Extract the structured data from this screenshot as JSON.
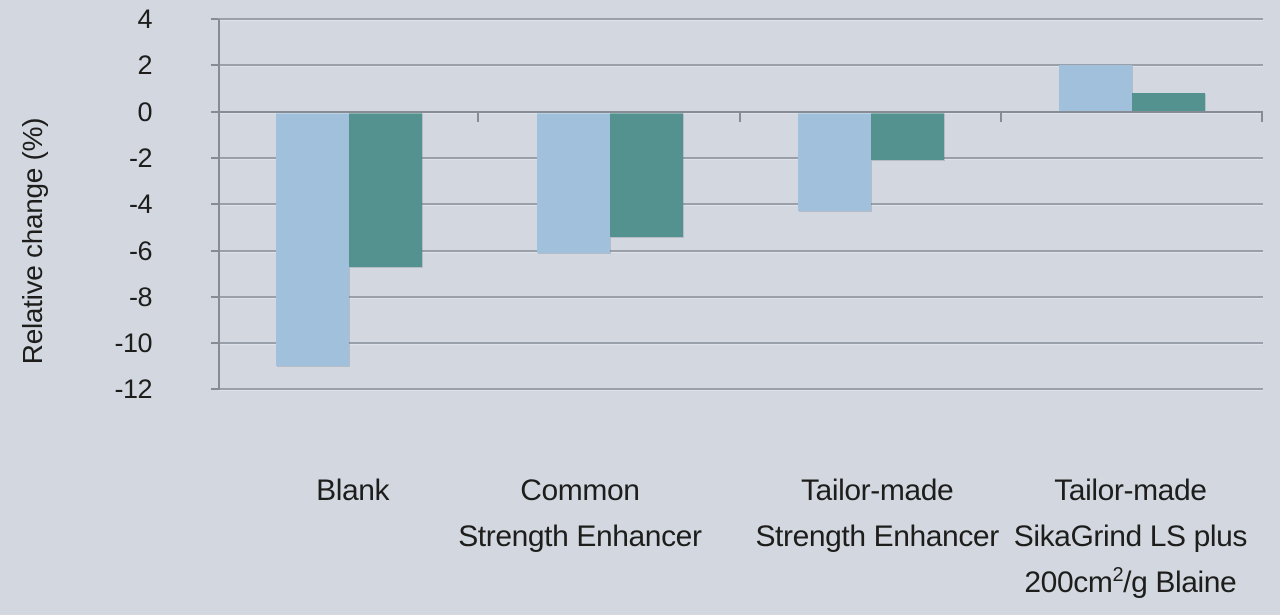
{
  "chart_data": {
    "type": "bar",
    "title": "",
    "xlabel": "",
    "ylabel": "Relative change (%)",
    "categories": [
      "Blank",
      "Common Strength Enhancer",
      "Tailor-made Strength Enhancer",
      "Tailor-made SikaGrind LS plus 200cm²/g Blaine"
    ],
    "category_label_lines": [
      [
        "Blank"
      ],
      [
        "Common",
        "Strength Enhancer"
      ],
      [
        "Tailor-made",
        "Strength Enhancer"
      ],
      [
        "Tailor-made",
        "SikaGrind LS plus",
        "200cm²/g Blaine"
      ]
    ],
    "series": [
      {
        "name": "light-blue-series",
        "color": "#a0c0dc",
        "values": [
          -11.0,
          -6.1,
          -4.3,
          2.0
        ]
      },
      {
        "name": "teal-series",
        "color": "#549290",
        "values": [
          -6.7,
          -5.4,
          -2.1,
          0.8
        ]
      }
    ],
    "yticks": [
      4,
      2,
      0,
      -2,
      -4,
      -6,
      -8,
      -10,
      -12
    ],
    "ylim": [
      -12,
      4
    ],
    "grid": true,
    "legend": "none",
    "background_color": "#d2d7e0",
    "gridline_color": "#9aa0a9",
    "text_color": "#1d1d1b"
  }
}
